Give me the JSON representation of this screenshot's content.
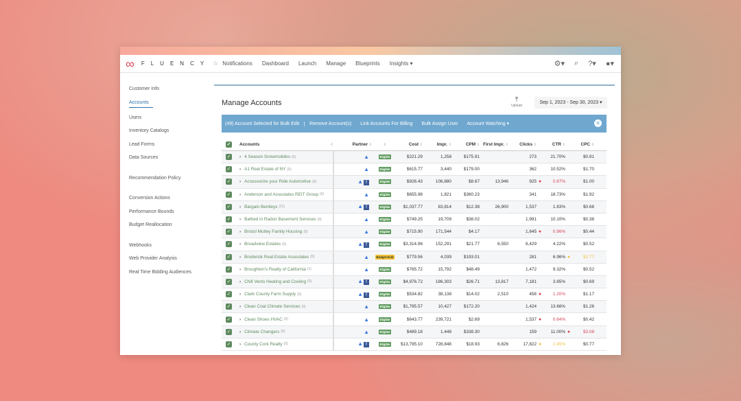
{
  "nav": {
    "brand": "FLUENCY",
    "items": [
      "Notifications",
      "Dashboard",
      "Launch",
      "Manage",
      "Blueprints",
      "Insights ▾"
    ]
  },
  "sidebar": {
    "groups": [
      [
        "Customer Info",
        "Accounts",
        "Users",
        "Inventory Catalogs",
        "Lead Forms",
        "Data Sources"
      ],
      [
        "Recommendation Policy"
      ],
      [
        "Conversion Actions",
        "Performance Bounds",
        "Budget Reallocation"
      ],
      [
        "Webhooks",
        "Web Provider Analysis",
        "Real Time Bidding Audiences"
      ]
    ],
    "active": "Accounts"
  },
  "page": {
    "title": "Manage Accounts",
    "upload": "Upload",
    "date_range": "Sep 1, 2023 - Sep 30, 2023"
  },
  "bulk_bar": {
    "selected": "(49) Account Selected for Bulk Edit",
    "actions": [
      "Remove Account(s)",
      "Link Accounts For Billing",
      "Bulk Assign User",
      "Account Watching ▾"
    ]
  },
  "table": {
    "headers": {
      "accounts": "Accounts",
      "partner": "Partner",
      "cost": "Cost",
      "impr": "Impr.",
      "cpm": "CPM",
      "first_impr": "First Impr.",
      "clicks": "Clicks",
      "ctr": "CTR",
      "cpc": "CPC"
    },
    "colors": {
      "warning_red": "#d6455a",
      "warning_yellow": "#f0c040",
      "eligible": "#5e9a5e",
      "budget_hold": "#f2c233"
    },
    "rows": [
      {
        "name": "4 Season Snowmobiles",
        "count": "(0)",
        "partners": [
          "google-ads"
        ],
        "status": "Eligible",
        "cost": "$221.29",
        "impr": "1,258",
        "cpm": "$175.91",
        "first_impr": "",
        "clicks": "273",
        "ctr": "21.70%",
        "ctr_flag": "",
        "cpc": "$0.81",
        "cpc_flag": ""
      },
      {
        "name": "A1 Real Estate of NY",
        "count": "(0)",
        "partners": [
          "google-ads"
        ],
        "status": "Eligible",
        "cost": "$615.77",
        "impr": "3,440",
        "cpm": "$179.00",
        "first_impr": "",
        "clicks": "362",
        "ctr": "10.52%",
        "ctr_flag": "",
        "cpc": "$1.70",
        "cpc_flag": ""
      },
      {
        "name": "Accessorize your Ride Automotive",
        "count": "(0)",
        "partners": [
          "google-ads",
          "facebook"
        ],
        "status": "Eligible",
        "cost": "$926.43",
        "impr": "106,880",
        "cpm": "$8.67",
        "first_impr": "13,946",
        "clicks": "925",
        "ctr": "0.87%",
        "ctr_flag": "red",
        "cpc": "$1.00",
        "cpc_flag": ""
      },
      {
        "name": "Anderson and Associates REIT Group",
        "count": "(0)",
        "partners": [
          "google-ads"
        ],
        "status": "Eligible",
        "cost": "$655.98",
        "impr": "1,821",
        "cpm": "$360.23",
        "first_impr": "",
        "clicks": "341",
        "ctr": "18.73%",
        "ctr_flag": "",
        "cpc": "$1.92",
        "cpc_flag": ""
      },
      {
        "name": "Bargain Bentleys",
        "count": "(11)",
        "partners": [
          "google-ads",
          "facebook"
        ],
        "status": "Eligible",
        "cost": "$1,037.77",
        "impr": "83,814",
        "cpm": "$12.38",
        "first_impr": "26,900",
        "clicks": "1,537",
        "ctr": "1.83%",
        "ctr_flag": "",
        "cpc": "$0.68",
        "cpc_flag": ""
      },
      {
        "name": "Bathed in Radon Basement Services",
        "count": "(0)",
        "partners": [
          "google-ads"
        ],
        "status": "Eligible",
        "cost": "$749.25",
        "impr": "19,709",
        "cpm": "$38.02",
        "first_impr": "",
        "clicks": "1,991",
        "ctr": "10.10%",
        "ctr_flag": "",
        "cpc": "$0.38",
        "cpc_flag": ""
      },
      {
        "name": "Bristol Mutley Family Housing",
        "count": "(0)",
        "partners": [
          "google-ads"
        ],
        "status": "Eligible",
        "cost": "$715.90",
        "impr": "171,544",
        "cpm": "$4.17",
        "first_impr": "",
        "clicks": "1,645",
        "ctr": "0.96%",
        "ctr_flag": "red",
        "cpc": "$0.44",
        "cpc_flag": ""
      },
      {
        "name": "Broadview Estates",
        "count": "(0)",
        "partners": [
          "google-ads",
          "facebook"
        ],
        "status": "Eligible",
        "cost": "$3,314.96",
        "impr": "152,291",
        "cpm": "$21.77",
        "first_impr": "6,550",
        "clicks": "6,429",
        "ctr": "4.22%",
        "ctr_flag": "",
        "cpc": "$0.52",
        "cpc_flag": ""
      },
      {
        "name": "Broderick Real Estate Associates",
        "count": "(0)",
        "partners": [
          "google-ads"
        ],
        "status": "Budget Hold",
        "cost": "$779.56",
        "impr": "4,039",
        "cpm": "$193.01",
        "first_impr": "",
        "clicks": "281",
        "ctr": "6.96%",
        "ctr_flag": "",
        "cpc": "$2.77",
        "cpc_flag": "yellow"
      },
      {
        "name": "Broughton's Realty of California",
        "count": "(1)",
        "partners": [
          "google-ads"
        ],
        "status": "Eligible",
        "cost": "$765.72",
        "impr": "15,792",
        "cpm": "$48.49",
        "first_impr": "",
        "clicks": "1,472",
        "ctr": "9.32%",
        "ctr_flag": "",
        "cpc": "$0.52",
        "cpc_flag": ""
      },
      {
        "name": "Chill Vents Heating and Cooling",
        "count": "(0)",
        "partners": [
          "google-ads",
          "facebook"
        ],
        "status": "Eligible",
        "cost": "$4,976.72",
        "impr": "186,303",
        "cpm": "$26.71",
        "first_impr": "13,817",
        "clicks": "7,181",
        "ctr": "3.85%",
        "ctr_flag": "",
        "cpc": "$0.69",
        "cpc_flag": ""
      },
      {
        "name": "Clark County Farm Supply",
        "count": "(0)",
        "partners": [
          "google-ads",
          "facebook"
        ],
        "status": "Eligible",
        "cost": "$534.82",
        "impr": "38,138",
        "cpm": "$14.02",
        "first_impr": "2,510",
        "clicks": "458",
        "ctr": "1.20%",
        "ctr_flag": "red",
        "cpc": "$1.17",
        "cpc_flag": ""
      },
      {
        "name": "Clean Coal Climate Services",
        "count": "(0)",
        "partners": [
          "google-ads"
        ],
        "status": "Eligible",
        "cost": "$1,795.57",
        "impr": "10,427",
        "cpm": "$172.20",
        "first_impr": "",
        "clicks": "1,424",
        "ctr": "13.66%",
        "ctr_flag": "",
        "cpc": "$1.26",
        "cpc_flag": ""
      },
      {
        "name": "Clean Shoes HVAC",
        "count": "(0)",
        "partners": [
          "google-ads"
        ],
        "status": "Eligible",
        "cost": "$643.77",
        "impr": "239,721",
        "cpm": "$2.69",
        "first_impr": "",
        "clicks": "1,537",
        "ctr": "0.64%",
        "ctr_flag": "red",
        "cpc": "$0.42",
        "cpc_flag": ""
      },
      {
        "name": "Climate Changers",
        "count": "(0)",
        "partners": [
          "google-ads"
        ],
        "status": "Eligible",
        "cost": "$489.18",
        "impr": "1,446",
        "cpm": "$338.30",
        "first_impr": "",
        "clicks": "159",
        "ctr": "11.00%",
        "ctr_flag": "",
        "cpc": "$3.08",
        "cpc_flag": "red"
      },
      {
        "name": "County Cork Realty",
        "count": "(0)",
        "partners": [
          "google-ads",
          "facebook"
        ],
        "status": "Eligible",
        "cost": "$13,795.10",
        "impr": "728,848",
        "cpm": "$18.93",
        "first_impr": "6,826",
        "clicks": "17,822",
        "ctr": "2.45%",
        "ctr_flag": "yellow",
        "cpc": "$0.77",
        "cpc_flag": ""
      }
    ]
  }
}
